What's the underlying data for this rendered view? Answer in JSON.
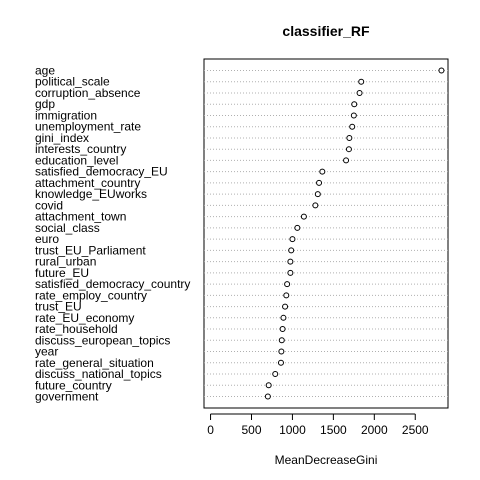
{
  "chart_data": {
    "type": "scatter",
    "style": "dotchart",
    "title": "classifier_RF",
    "xlabel": "MeanDecreaseGini",
    "ylabel": "",
    "xlim": [
      -80,
      2900
    ],
    "xticks": [
      0,
      500,
      1000,
      1500,
      2000,
      2500
    ],
    "xtick_labels": [
      "0",
      "500",
      "1000",
      "1500",
      "2000",
      "2500"
    ],
    "grid": "dotted-horizontal",
    "marker": "open-circle",
    "points": [
      {
        "label": "age",
        "value": 2820
      },
      {
        "label": "political_scale",
        "value": 1840
      },
      {
        "label": "corruption_absence",
        "value": 1820
      },
      {
        "label": "gdp",
        "value": 1755
      },
      {
        "label": "immigration",
        "value": 1750
      },
      {
        "label": "unemployment_rate",
        "value": 1730
      },
      {
        "label": "gini_index",
        "value": 1695
      },
      {
        "label": "interests_country",
        "value": 1690
      },
      {
        "label": "education_level",
        "value": 1655
      },
      {
        "label": "satisfied_democracy_EU",
        "value": 1365
      },
      {
        "label": "attachment_country",
        "value": 1325
      },
      {
        "label": "knowledge_EUworks",
        "value": 1310
      },
      {
        "label": "covid",
        "value": 1280
      },
      {
        "label": "attachment_town",
        "value": 1140
      },
      {
        "label": "social_class",
        "value": 1060
      },
      {
        "label": "euro",
        "value": 1000
      },
      {
        "label": "trust_EU_Parliament",
        "value": 985
      },
      {
        "label": "rural_urban",
        "value": 975
      },
      {
        "label": "future_EU",
        "value": 975
      },
      {
        "label": "satisfied_democracy_country",
        "value": 935
      },
      {
        "label": "rate_employ_country",
        "value": 925
      },
      {
        "label": "trust_EU",
        "value": 910
      },
      {
        "label": "rate_EU_economy",
        "value": 890
      },
      {
        "label": "rate_household",
        "value": 880
      },
      {
        "label": "discuss_european_topics",
        "value": 870
      },
      {
        "label": "year",
        "value": 865
      },
      {
        "label": "rate_general_situation",
        "value": 860
      },
      {
        "label": "discuss_national_topics",
        "value": 790
      },
      {
        "label": "future_country",
        "value": 710
      },
      {
        "label": "government",
        "value": 700
      }
    ]
  }
}
